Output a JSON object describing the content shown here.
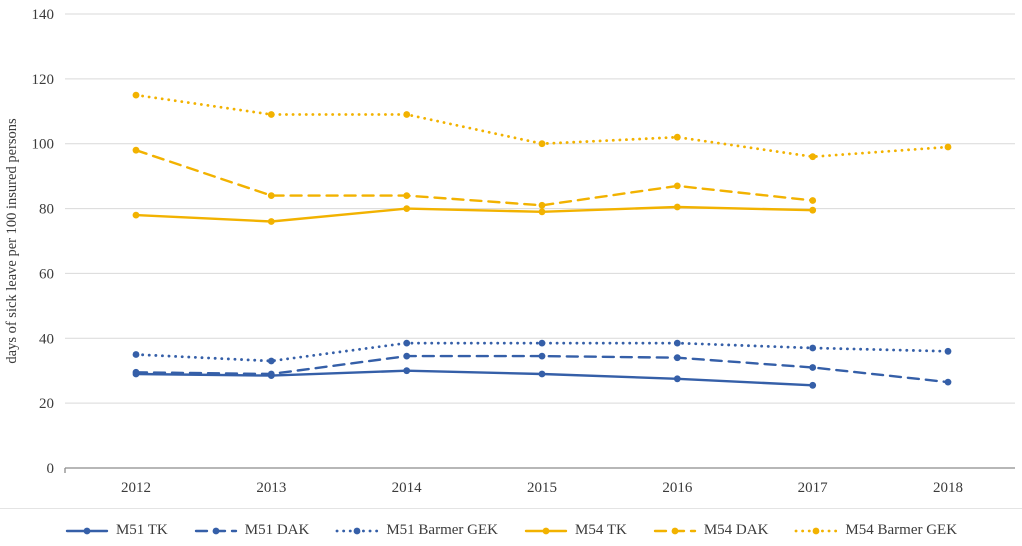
{
  "chart_data": {
    "type": "line",
    "title": "",
    "xlabel": "",
    "ylabel": "days of sick leave per 100 insured persons",
    "x": [
      2012,
      2013,
      2014,
      2015,
      2016,
      2017,
      2018
    ],
    "ylim": [
      0,
      140
    ],
    "ytick_step": 20,
    "grid": true,
    "legend_position": "bottom",
    "colors": {
      "blue": "#355FA8",
      "gold": "#F2B200",
      "gridline": "#d9d9d9",
      "axis": "#8c8c8c",
      "text": "#3b3b3b"
    },
    "series": [
      {
        "name": "M51 TK",
        "color": "#355FA8",
        "style": "solid",
        "values": [
          29,
          28.5,
          30,
          29,
          27.5,
          25.5,
          null
        ]
      },
      {
        "name": "M51 DAK",
        "color": "#355FA8",
        "style": "dashed",
        "values": [
          29.5,
          29,
          34.5,
          34.5,
          34,
          31,
          26.5
        ]
      },
      {
        "name": "M51 Barmer GEK",
        "color": "#355FA8",
        "style": "dotted",
        "values": [
          35,
          33,
          38.5,
          38.5,
          38.5,
          37,
          36
        ]
      },
      {
        "name": "M54 TK",
        "color": "#F2B200",
        "style": "solid",
        "values": [
          78,
          76,
          80,
          79,
          80.5,
          79.5,
          null
        ]
      },
      {
        "name": "M54 DAK",
        "color": "#F2B200",
        "style": "dashed",
        "values": [
          98,
          84,
          84,
          81,
          87,
          82.5,
          null
        ]
      },
      {
        "name": "M54 Barmer GEK",
        "color": "#F2B200",
        "style": "dotted",
        "values": [
          115,
          109,
          109,
          100,
          102,
          96,
          99
        ]
      }
    ]
  }
}
